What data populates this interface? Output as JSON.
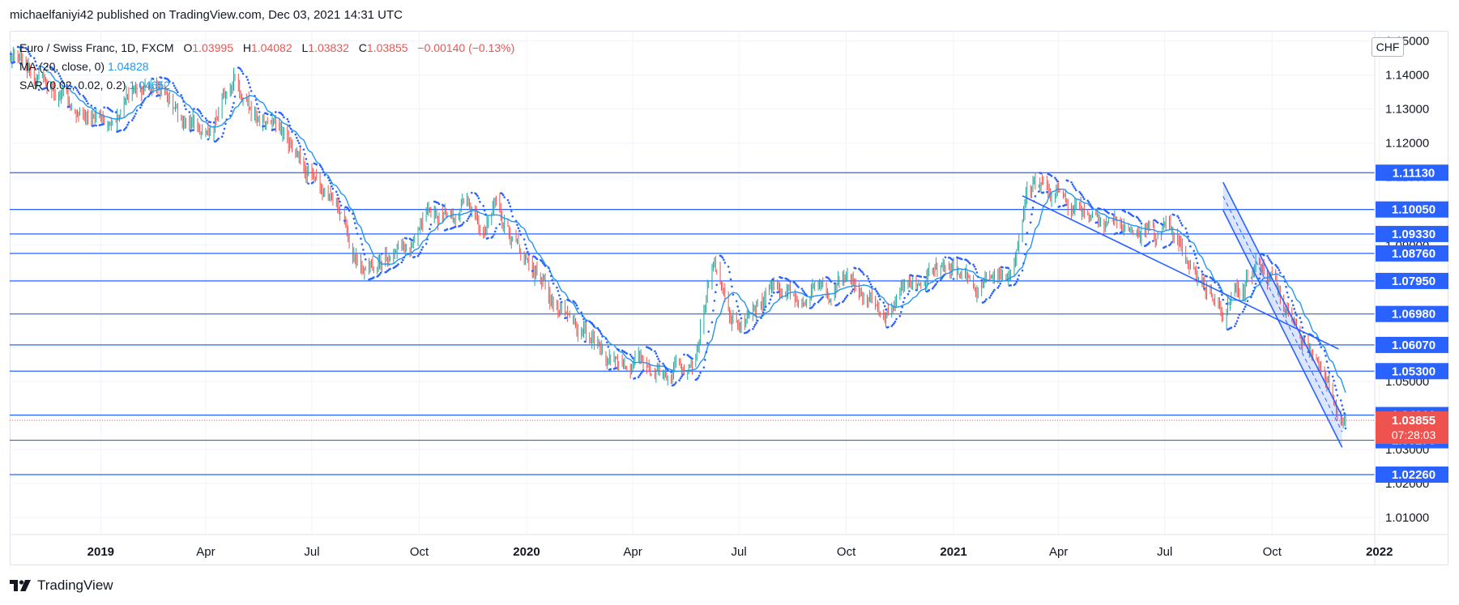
{
  "publisher_line": "michaelfaniyi42 published on TradingView.com, Dec 03, 2021 14:31 UTC",
  "brand": "TradingView",
  "currency": "CHF",
  "legend": {
    "symbol": "Euro / Swiss Franc, 1D, FXCM",
    "open_label": "O",
    "open": "1.03995",
    "high_label": "H",
    "high": "1.04082",
    "low_label": "L",
    "low": "1.03832",
    "close_label": "C",
    "close": "1.03855",
    "change": "−0.00140 (−0.13%)",
    "ma_label": "MA (20, close, 0)",
    "ma_value": "1.04828",
    "sar_label": "SAR (0.02, 0.02, 0.2)",
    "sar_value": "1.04652"
  },
  "colors": {
    "up": "#26a69a",
    "down": "#ef5350",
    "line": "#2962ff",
    "ma": "#2196f3",
    "price_badge": "#ef5350",
    "level_badge": "#2962ff"
  },
  "chart_data": {
    "type": "candlestick",
    "title": "Euro / Swiss Franc, 1D, FXCM",
    "x_tick_labels": [
      "2019",
      "Apr",
      "Jul",
      "Oct",
      "2020",
      "Apr",
      "Jul",
      "Oct",
      "2021",
      "Apr",
      "Jul",
      "Oct",
      "2022"
    ],
    "x_range": [
      "2018-10-15",
      "2021-12-28"
    ],
    "y_range": [
      1.005,
      1.153
    ],
    "y_tick_labels": [
      "1.15000",
      "1.14000",
      "1.13000",
      "1.12000",
      "1.11000",
      "1.10000",
      "1.09000",
      "1.08000",
      "1.07000",
      "1.06000",
      "1.05000",
      "1.04000",
      "1.03000",
      "1.02000",
      "1.01000"
    ],
    "price_path": [
      [
        "2018-10-15",
        1.145
      ],
      [
        "2018-11-15",
        1.138
      ],
      [
        "2018-12-15",
        1.128
      ],
      [
        "2019-01-10",
        1.127
      ],
      [
        "2019-02-01",
        1.137
      ],
      [
        "2019-02-20",
        1.137
      ],
      [
        "2019-03-20",
        1.125
      ],
      [
        "2019-04-05",
        1.12
      ],
      [
        "2019-04-25",
        1.14
      ],
      [
        "2019-05-10",
        1.128
      ],
      [
        "2019-06-01",
        1.125
      ],
      [
        "2019-06-20",
        1.115
      ],
      [
        "2019-07-05",
        1.11
      ],
      [
        "2019-07-25",
        1.102
      ],
      [
        "2019-08-10",
        1.087
      ],
      [
        "2019-08-25",
        1.083
      ],
      [
        "2019-09-10",
        1.09
      ],
      [
        "2019-09-25",
        1.088
      ],
      [
        "2019-10-05",
        1.095
      ],
      [
        "2019-10-25",
        1.1
      ],
      [
        "2019-11-10",
        1.102
      ],
      [
        "2019-11-25",
        1.097
      ],
      [
        "2019-12-05",
        1.1
      ],
      [
        "2019-12-25",
        1.089
      ],
      [
        "2020-01-15",
        1.08
      ],
      [
        "2020-02-01",
        1.068
      ],
      [
        "2020-02-20",
        1.062
      ],
      [
        "2020-03-10",
        1.058
      ],
      [
        "2020-03-25",
        1.056
      ],
      [
        "2020-04-10",
        1.055
      ],
      [
        "2020-05-01",
        1.053
      ],
      [
        "2020-05-25",
        1.06
      ],
      [
        "2020-06-08",
        1.085
      ],
      [
        "2020-06-25",
        1.066
      ],
      [
        "2020-07-10",
        1.067
      ],
      [
        "2020-07-25",
        1.076
      ],
      [
        "2020-08-15",
        1.077
      ],
      [
        "2020-09-15",
        1.076
      ],
      [
        "2020-10-01",
        1.08
      ],
      [
        "2020-10-20",
        1.074
      ],
      [
        "2020-11-05",
        1.07
      ],
      [
        "2020-11-20",
        1.08
      ],
      [
        "2020-12-05",
        1.081
      ],
      [
        "2020-12-25",
        1.085
      ],
      [
        "2021-01-15",
        1.078
      ],
      [
        "2021-02-05",
        1.08
      ],
      [
        "2021-02-20",
        1.085
      ],
      [
        "2021-03-05",
        1.108
      ],
      [
        "2021-03-20",
        1.107
      ],
      [
        "2021-04-05",
        1.105
      ],
      [
        "2021-04-20",
        1.101
      ],
      [
        "2021-05-05",
        1.1
      ],
      [
        "2021-05-20",
        1.097
      ],
      [
        "2021-06-05",
        1.093
      ],
      [
        "2021-06-20",
        1.094
      ],
      [
        "2021-07-05",
        1.093
      ],
      [
        "2021-07-20",
        1.083
      ],
      [
        "2021-08-05",
        1.078
      ],
      [
        "2021-08-20",
        1.072
      ],
      [
        "2021-09-05",
        1.079
      ],
      [
        "2021-09-20",
        1.085
      ],
      [
        "2021-10-05",
        1.076
      ],
      [
        "2021-10-20",
        1.065
      ],
      [
        "2021-11-05",
        1.058
      ],
      [
        "2021-11-20",
        1.05
      ],
      [
        "2021-12-03",
        1.0386
      ]
    ],
    "horizontal_levels": [
      "1.11130",
      "1.10050",
      "1.09330",
      "1.08760",
      "1.07950",
      "1.06980",
      "1.06070",
      "1.05300",
      "1.04010",
      "1.03270",
      "1.02260"
    ],
    "last_price": "1.03855",
    "countdown": "07:28:03",
    "ma_period": 20,
    "sar_params": [
      0.02,
      0.02,
      0.2
    ],
    "trend_lines": [
      [
        [
          "2021-03-01",
          1.1045
        ],
        [
          "2021-11-27",
          1.0595
        ]
      ]
    ],
    "channel": {
      "upper": [
        [
          "2021-08-20",
          1.1085
        ],
        [
          "2021-11-30",
          1.0398
        ]
      ],
      "lower": [
        [
          "2021-08-20",
          1.1003
        ],
        [
          "2021-11-30",
          1.0306
        ]
      ]
    },
    "grid": true
  }
}
